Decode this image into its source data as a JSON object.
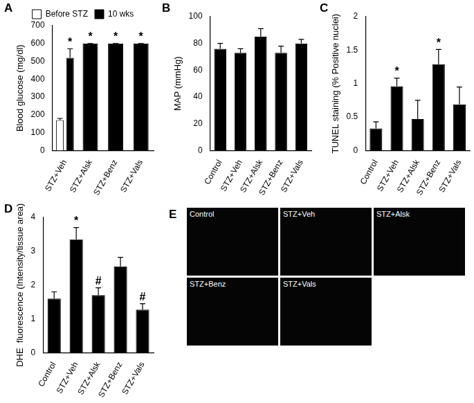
{
  "chart_data": [
    {
      "panel": "A",
      "type": "bar",
      "y_label": "Blood glucose (mg/dl)",
      "categories": [
        "STZ+Veh",
        "STZ+Alsk",
        "STZ+Benz",
        "STZ+Vals"
      ],
      "series": [
        {
          "name": "Before STZ",
          "color": "#ffffff",
          "values": [
            170,
            null,
            null,
            null
          ],
          "errors": [
            10,
            null,
            null,
            null
          ],
          "annotations": [
            null,
            null,
            null,
            null
          ]
        },
        {
          "name": "10 wks",
          "color": "#000000",
          "values": [
            520,
            600,
            600,
            600
          ],
          "errors": [
            50,
            0,
            0,
            0
          ],
          "annotations": [
            "*",
            "*",
            "*",
            "*"
          ]
        }
      ],
      "ylim": [
        0,
        700
      ],
      "yticks": [
        0,
        100,
        200,
        300,
        400,
        500,
        600,
        700
      ],
      "grid": false,
      "legend": "top"
    },
    {
      "panel": "B",
      "type": "bar",
      "y_label": "MAP (mmHg)",
      "categories": [
        "Control",
        "STZ+Veh",
        "STZ+Alsk",
        "STZ+Benz",
        "STZ+Vals"
      ],
      "series": [
        {
          "name": "MAP",
          "color": "#000000",
          "values": [
            76,
            73,
            85,
            73,
            80
          ],
          "errors": [
            4,
            3,
            6,
            5,
            3
          ],
          "annotations": [
            null,
            null,
            null,
            null,
            null
          ]
        }
      ],
      "ylim": [
        0,
        100
      ],
      "yticks": [
        0,
        20,
        40,
        60,
        80,
        100
      ],
      "grid": false
    },
    {
      "panel": "C",
      "type": "bar",
      "y_label": "TUNEL staining (% Positive nuclei)",
      "categories": [
        "Control",
        "STZ+Veh",
        "STZ+Alsk",
        "STZ+Benz",
        "STZ+Vals"
      ],
      "series": [
        {
          "name": "TUNEL",
          "color": "#000000",
          "values": [
            0.33,
            0.96,
            0.47,
            1.29,
            0.69
          ],
          "errors": [
            0.1,
            0.12,
            0.28,
            0.22,
            0.26
          ],
          "annotations": [
            null,
            "*",
            null,
            "*",
            null
          ]
        }
      ],
      "ylim": [
        0,
        2
      ],
      "yticks": [
        0,
        0.5,
        1,
        1.5,
        2
      ],
      "grid": false
    },
    {
      "panel": "D",
      "type": "bar",
      "y_label": "DHE  fluorescence (Intensity/tissue area)",
      "categories": [
        "Control",
        "STZ+Veh",
        "STZ+Alsk",
        "STZ+Benz",
        "STZ+Vals"
      ],
      "series": [
        {
          "name": "DHE",
          "color": "#000000",
          "values": [
            1.6,
            3.35,
            1.7,
            2.55,
            1.27
          ],
          "errors": [
            0.2,
            0.35,
            0.22,
            0.27,
            0.18
          ],
          "annotations": [
            null,
            "*",
            "#",
            null,
            "#"
          ]
        }
      ],
      "ylim": [
        0,
        4
      ],
      "yticks": [
        0,
        1,
        2,
        3,
        4
      ],
      "grid": false
    }
  ],
  "image_panel": {
    "panel": "E",
    "labels": [
      "Control",
      "STZ+Veh",
      "STZ+Alsk",
      "STZ+Benz",
      "STZ+Vals"
    ]
  }
}
